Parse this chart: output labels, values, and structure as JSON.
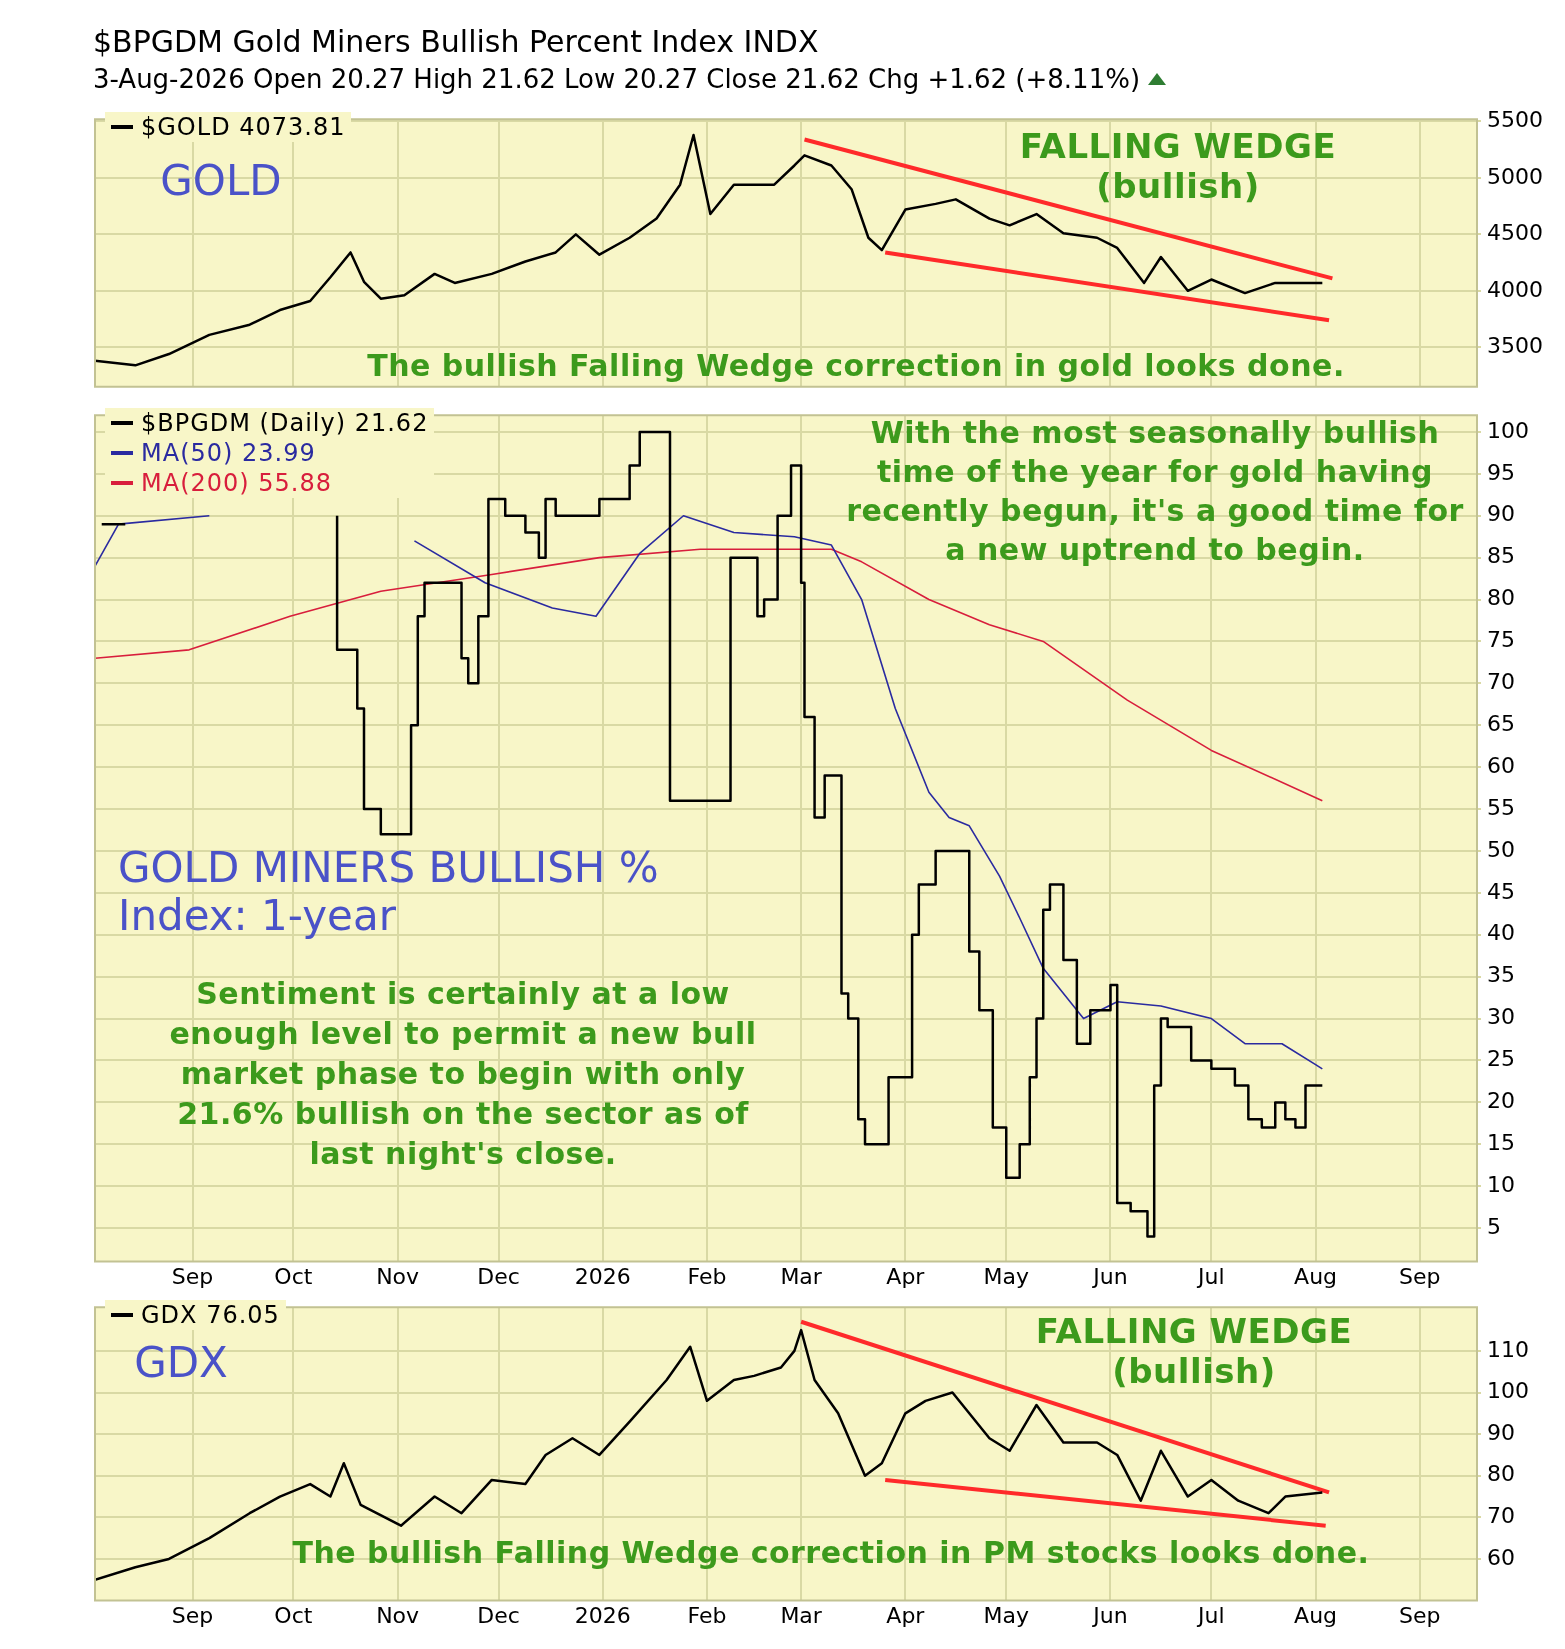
{
  "chart_data": [
    {
      "type": "line",
      "title": "$BPGDM Gold Miners Bullish Percent Index INDX",
      "subtitle": "3-Aug-2026 Open 20.27 High 21.62 Low 20.27 Close 21.62 Chg +1.62 (+8.11%)",
      "series": [
        {
          "name": "$GOLD 4073.81",
          "color": "#000000",
          "x": [
            "2025-08-03",
            "2025-08-15",
            "2025-08-25",
            "2025-09-06",
            "2025-09-18",
            "2025-09-27",
            "2025-10-06",
            "2025-10-12",
            "2025-10-18",
            "2025-10-22",
            "2025-10-27",
            "2025-11-03",
            "2025-11-12",
            "2025-11-18",
            "2025-11-29",
            "2025-12-09",
            "2025-12-18",
            "2025-12-24",
            "2025-12-31",
            "2026-01-09",
            "2026-01-17",
            "2026-01-24",
            "2026-01-28",
            "2026-02-02",
            "2026-02-09",
            "2026-02-21",
            "2026-02-27",
            "2026-03-02",
            "2026-03-10",
            "2026-03-16",
            "2026-03-21",
            "2026-03-25",
            "2026-04-01",
            "2026-04-10",
            "2026-04-16",
            "2026-04-26",
            "2026-05-02",
            "2026-05-10",
            "2026-05-18",
            "2026-05-28",
            "2026-06-03",
            "2026-06-11",
            "2026-06-16",
            "2026-06-24",
            "2026-07-01",
            "2026-07-11",
            "2026-07-20",
            "2026-08-03"
          ],
          "values": [
            3380,
            3340,
            3440,
            3610,
            3700,
            3830,
            3910,
            4120,
            4340,
            4080,
            3930,
            3960,
            4150,
            4070,
            4150,
            4260,
            4340,
            4500,
            4320,
            4470,
            4640,
            4940,
            5380,
            4680,
            4940,
            4940,
            5110,
            5200,
            5110,
            4900,
            4470,
            4360,
            4720,
            4770,
            4810,
            4640,
            4580,
            4680,
            4510,
            4470,
            4380,
            4070,
            4300,
            4000,
            4100,
            3980,
            4070,
            4070
          ]
        },
        {
          "color": "#ff2a2a",
          "x": [
            "2026-03-02",
            "2026-08-06"
          ],
          "values": [
            5340,
            4110
          ]
        },
        {
          "color": "#ff2a2a",
          "x": [
            "2026-03-26",
            "2026-08-05"
          ],
          "values": [
            4340,
            3740
          ]
        }
      ],
      "xlim": [
        "2025-08-03",
        "2026-09-18"
      ],
      "xticks": [
        {
          "value": "2025-09-01",
          "label": null
        },
        {
          "value": "2025-10-01",
          "label": null
        },
        {
          "value": "2025-11-01",
          "label": null
        },
        {
          "value": "2025-12-01",
          "label": null
        },
        {
          "value": "2026-01-01",
          "label": null
        },
        {
          "value": "2026-02-01",
          "label": null
        },
        {
          "value": "2026-03-01",
          "label": null
        },
        {
          "value": "2026-04-01",
          "label": null
        },
        {
          "value": "2026-05-01",
          "label": null
        },
        {
          "value": "2026-06-01",
          "label": null
        },
        {
          "value": "2026-07-01",
          "label": null
        },
        {
          "value": "2026-08-01",
          "label": null
        },
        {
          "value": "2026-09-01",
          "label": null
        }
      ],
      "ylim": [
        3150,
        5520
      ],
      "yticks": [
        3500,
        4000,
        4500,
        5000,
        5500
      ],
      "grid": true,
      "legend": "top left",
      "tick_labels": "y",
      "annotations": [
        "GOLD",
        "FALLING WEDGE",
        "(bullish)",
        "The bullish Falling Wedge correction in gold looks done."
      ]
    },
    {
      "type": "step",
      "series": [
        {
          "name": "$BPGDM (Daily) 21.62",
          "color": "#000000",
          "x": [
            "2025-08-05",
            "2025-08-12",
            "2025-10-08",
            "2025-10-14",
            "2025-10-20",
            "2025-10-22",
            "2025-10-27",
            "2025-11-05",
            "2025-11-07",
            "2025-11-09",
            "2025-11-12",
            "2025-11-20",
            "2025-11-22",
            "2025-11-25",
            "2025-11-28",
            "2025-12-03",
            "2025-12-09",
            "2025-12-13",
            "2025-12-15",
            "2025-12-18",
            "2025-12-31",
            "2026-01-09",
            "2026-01-12",
            "2026-01-21",
            "2026-02-01",
            "2026-02-08",
            "2026-02-10",
            "2026-02-16",
            "2026-02-18",
            "2026-02-22",
            "2026-02-26",
            "2026-03-01",
            "2026-03-02",
            "2026-03-05",
            "2026-03-08",
            "2026-03-10",
            "2026-03-13",
            "2026-03-15",
            "2026-03-18",
            "2026-03-20",
            "2026-03-27",
            "2026-04-03",
            "2026-04-05",
            "2026-04-10",
            "2026-04-12",
            "2026-04-20",
            "2026-04-23",
            "2026-04-27",
            "2026-05-01",
            "2026-05-05",
            "2026-05-08",
            "2026-05-10",
            "2026-05-12",
            "2026-05-14",
            "2026-05-18",
            "2026-05-22",
            "2026-05-26",
            "2026-06-01",
            "2026-06-03",
            "2026-06-07",
            "2026-06-12",
            "2026-06-14",
            "2026-06-16",
            "2026-06-18",
            "2026-06-25",
            "2026-07-01",
            "2026-07-08",
            "2026-07-12",
            "2026-07-16",
            "2026-07-20",
            "2026-07-23",
            "2026-07-26",
            "2026-07-29",
            "2026-08-03"
          ],
          "values": [
            89,
            89,
            null,
            90,
            74,
            67,
            55,
            52,
            65,
            78,
            82,
            82,
            73,
            70,
            78,
            92,
            90,
            88,
            85,
            92,
            90,
            92,
            96,
            100,
            56,
            56,
            85,
            85,
            78,
            80,
            90,
            96,
            82,
            66,
            54,
            59,
            59,
            33,
            30,
            18,
            15,
            23,
            40,
            46,
            50,
            50,
            38,
            31,
            17,
            11,
            15,
            23,
            30,
            43,
            46,
            37,
            27,
            31,
            34,
            8,
            7,
            4,
            22,
            30,
            29,
            25,
            24,
            22,
            18,
            17,
            20,
            18,
            17,
            22
          ]
        },
        {
          "name": "MA(50) 23.99",
          "type": "line",
          "color": "#2a2aa0",
          "x": [
            "2025-08-03",
            "2025-08-10",
            "2025-09-06",
            "2025-10-12",
            "2025-10-24",
            "2025-11-06",
            "2025-11-27",
            "2025-12-17",
            "2025-12-30",
            "2026-01-12",
            "2026-01-25",
            "2026-02-09",
            "2026-02-27",
            "2026-03-10",
            "2026-03-19",
            "2026-03-29",
            "2026-04-08",
            "2026-04-14",
            "2026-04-20",
            "2026-04-29",
            "2026-05-05",
            "2026-05-12",
            "2026-05-24",
            "2026-06-03",
            "2026-06-16",
            "2026-07-01",
            "2026-07-11",
            "2026-07-22",
            "2026-08-01",
            "2026-08-03"
          ],
          "values": [
            84,
            89,
            90,
            null,
            null,
            87,
            82,
            79,
            78,
            85.5,
            90,
            88,
            87.5,
            86.5,
            80,
            67,
            57,
            54,
            53,
            47,
            42,
            36,
            30,
            32,
            31.5,
            30,
            27,
            27,
            24.5,
            24
          ]
        },
        {
          "name": "MA(200) 55.88",
          "type": "line",
          "color": "#d81e3c",
          "x": [
            "2025-08-03",
            "2025-08-31",
            "2025-09-30",
            "2025-10-27",
            "2025-11-29",
            "2025-12-31",
            "2026-01-30",
            "2026-03-10",
            "2026-03-19",
            "2026-04-08",
            "2026-04-26",
            "2026-05-12",
            "2026-06-06",
            "2026-07-01",
            "2026-08-03"
          ],
          "values": [
            73,
            74,
            78,
            81,
            83,
            85,
            86,
            86,
            84.5,
            80,
            77,
            75,
            68,
            62,
            56
          ]
        }
      ],
      "xlim": [
        "2025-08-03",
        "2026-09-18"
      ],
      "xticks": [
        {
          "value": "2025-09-01",
          "label": "Sep"
        },
        {
          "value": "2025-10-01",
          "label": "Oct"
        },
        {
          "value": "2025-11-01",
          "label": "Nov"
        },
        {
          "value": "2025-12-01",
          "label": "Dec"
        },
        {
          "value": "2026-01-01",
          "label": "2026"
        },
        {
          "value": "2026-02-01",
          "label": "Feb"
        },
        {
          "value": "2026-03-01",
          "label": "Mar"
        },
        {
          "value": "2026-04-01",
          "label": "Apr"
        },
        {
          "value": "2026-05-01",
          "label": "May"
        },
        {
          "value": "2026-06-01",
          "label": "Jun"
        },
        {
          "value": "2026-07-01",
          "label": "Jul"
        },
        {
          "value": "2026-08-01",
          "label": "Aug"
        },
        {
          "value": "2026-09-01",
          "label": "Sep"
        }
      ],
      "ylim": [
        1,
        102
      ],
      "yticks": [
        5,
        10,
        15,
        20,
        25,
        30,
        35,
        40,
        45,
        50,
        55,
        60,
        65,
        70,
        75,
        80,
        85,
        90,
        95,
        100
      ],
      "grid": true,
      "legend": "top left",
      "annotations": [
        "With the most seasonally bullish time of the year for gold having recently begun, it's a good time for a new uptrend to begin.",
        "GOLD MINERS BULLISH % Index: 1-year",
        "Sentiment is certainly at a low enough level to permit a new bull market phase to begin with only 21.6% bullish on the sector as of last night's close."
      ]
    },
    {
      "type": "line",
      "series": [
        {
          "name": "GDX 76.05",
          "color": "#000000",
          "x": [
            "2025-08-03",
            "2025-08-15",
            "2025-08-25",
            "2025-09-06",
            "2025-09-18",
            "2025-09-27",
            "2025-10-06",
            "2025-10-12",
            "2025-10-16",
            "2025-10-21",
            "2025-11-02",
            "2025-11-12",
            "2025-11-20",
            "2025-11-29",
            "2025-12-09",
            "2025-12-15",
            "2025-12-23",
            "2025-12-31",
            "2026-01-09",
            "2026-01-20",
            "2026-01-27",
            "2026-02-01",
            "2026-02-09",
            "2026-02-15",
            "2026-02-23",
            "2026-02-27",
            "2026-03-01",
            "2026-03-05",
            "2026-03-12",
            "2026-03-20",
            "2026-03-25",
            "2026-04-01",
            "2026-04-07",
            "2026-04-15",
            "2026-04-26",
            "2026-05-02",
            "2026-05-10",
            "2026-05-18",
            "2026-05-28",
            "2026-06-03",
            "2026-06-10",
            "2026-06-16",
            "2026-06-24",
            "2026-07-01",
            "2026-07-09",
            "2026-07-18",
            "2026-07-23",
            "2026-08-03"
          ],
          "values": [
            55,
            58,
            60,
            65,
            71,
            75,
            78,
            75,
            83,
            73,
            68,
            75,
            71,
            79,
            78,
            85,
            89,
            85,
            93,
            103,
            111,
            98,
            103,
            104,
            106,
            110,
            115,
            103,
            95,
            80,
            83,
            95,
            98,
            100,
            89,
            86,
            97,
            88,
            88,
            85,
            74,
            86,
            75,
            79,
            74,
            71,
            75,
            76
          ]
        },
        {
          "color": "#ff2a2a",
          "x": [
            "2026-03-01",
            "2026-08-05"
          ],
          "values": [
            117,
            76
          ]
        },
        {
          "color": "#ff2a2a",
          "x": [
            "2026-03-26",
            "2026-08-04"
          ],
          "values": [
            79,
            68
          ]
        }
      ],
      "xlim": [
        "2025-08-03",
        "2026-09-18"
      ],
      "xticks": [
        {
          "value": "2025-09-01",
          "label": "Sep"
        },
        {
          "value": "2025-10-01",
          "label": "Oct"
        },
        {
          "value": "2025-11-01",
          "label": "Nov"
        },
        {
          "value": "2025-12-01",
          "label": "Dec"
        },
        {
          "value": "2026-01-01",
          "label": "2026"
        },
        {
          "value": "2026-02-01",
          "label": "Feb"
        },
        {
          "value": "2026-03-01",
          "label": "Mar"
        },
        {
          "value": "2026-04-01",
          "label": "Apr"
        },
        {
          "value": "2026-05-01",
          "label": "May"
        },
        {
          "value": "2026-06-01",
          "label": "Jun"
        },
        {
          "value": "2026-07-01",
          "label": "Jul"
        },
        {
          "value": "2026-08-01",
          "label": "Aug"
        },
        {
          "value": "2026-09-01",
          "label": "Sep"
        }
      ],
      "ylim": [
        50,
        120.5
      ],
      "yticks": [
        60,
        70,
        80,
        90,
        100,
        110
      ],
      "grid": true,
      "legend": "top left",
      "annotations": [
        "GDX",
        "FALLING WEDGE",
        "(bullish)",
        "The bullish Falling Wedge correction in PM stocks looks done."
      ]
    }
  ]
}
